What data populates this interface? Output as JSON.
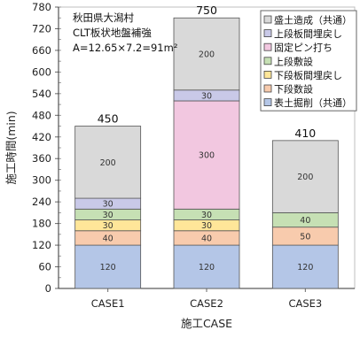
{
  "chart_data": {
    "type": "bar",
    "stacked": true,
    "categories": [
      "CASE1",
      "CASE2",
      "CASE3"
    ],
    "xlabel": "施工CASE",
    "ylabel": "施工時間(min)",
    "ylim": [
      0,
      780
    ],
    "ytick_step": 60,
    "grid": false,
    "legend_position": "top-right",
    "totals": [
      450,
      750,
      410
    ],
    "annotation": [
      "秋田県大潟村",
      "CLT板状地盤補強",
      "A=12.65×7.2=91m²"
    ],
    "series": [
      {
        "name": "表土掘削（共通）",
        "color": "#b4c6e7",
        "values": [
          120,
          120,
          120
        ]
      },
      {
        "name": "下段数設",
        "color": "#f8cbad",
        "values": [
          40,
          40,
          50
        ]
      },
      {
        "name": "下段板間埋戻し",
        "color": "#ffe699",
        "values": [
          30,
          30,
          0
        ]
      },
      {
        "name": "上段敷設",
        "color": "#c6e0b4",
        "values": [
          30,
          30,
          40
        ]
      },
      {
        "name": "固定ピン打ち",
        "color": "#f2c7e0",
        "values": [
          0,
          300,
          0
        ]
      },
      {
        "name": "上段板間埋戻し",
        "color": "#c9c9e8",
        "values": [
          30,
          30,
          0
        ]
      },
      {
        "name": "盛土造成（共通）",
        "color": "#d9d9d9",
        "values": [
          200,
          200,
          200
        ]
      }
    ]
  }
}
